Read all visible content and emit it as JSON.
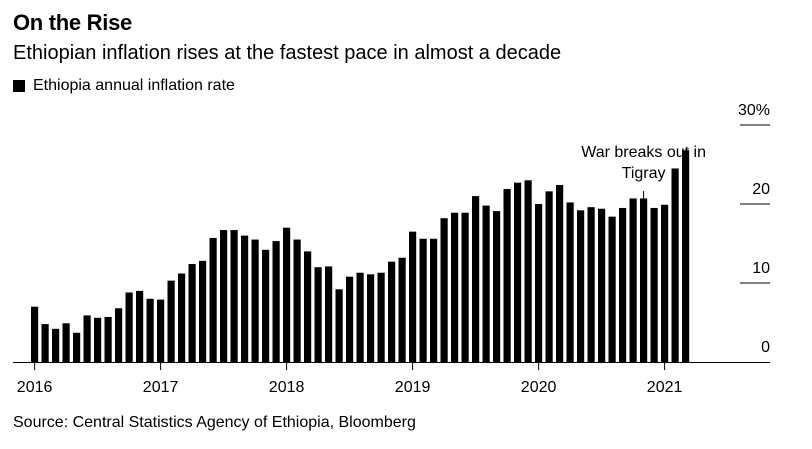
{
  "header": {
    "title": "On the Rise",
    "subtitle": "Ethiopian inflation rises at the fastest pace in almost a decade"
  },
  "footer": {
    "source": "Source: Central Statistics Agency of Ethiopia, Bloomberg"
  },
  "colors": {
    "bar": "#000000",
    "axis": "#000000",
    "grid": "#000000"
  },
  "chart_data": {
    "type": "bar",
    "legend": {
      "entries": [
        "Ethiopia annual inflation rate"
      ],
      "placement": "top-left"
    },
    "y_axis": {
      "position": "right",
      "ylim": [
        0,
        30
      ],
      "ticks": [
        0,
        10,
        20,
        30
      ],
      "tick_labels": [
        "0",
        "10",
        "20",
        "30%"
      ]
    },
    "x_axis": {
      "tick_labels": [
        "2016",
        "2017",
        "2018",
        "2019",
        "2020",
        "2021"
      ]
    },
    "annotations": [
      {
        "text": [
          "War breaks out in",
          "Tigray"
        ],
        "at_year": "2020",
        "at_month_index": 10
      }
    ],
    "series": [
      {
        "name": "Ethiopia annual inflation rate",
        "start": "2016-01",
        "values": [
          7.0,
          4.8,
          4.2,
          4.9,
          3.7,
          5.9,
          5.6,
          5.7,
          6.8,
          8.8,
          9.0,
          8.0,
          7.9,
          10.3,
          11.2,
          12.4,
          12.8,
          15.7,
          16.7,
          16.7,
          16.0,
          15.5,
          14.2,
          15.3,
          17.0,
          15.5,
          14.0,
          12.0,
          12.1,
          9.2,
          10.8,
          11.3,
          11.1,
          11.3,
          12.7,
          13.2,
          16.5,
          15.6,
          15.6,
          18.2,
          18.9,
          18.9,
          21.0,
          19.8,
          19.1,
          21.9,
          22.7,
          23.0,
          20.0,
          21.6,
          22.4,
          20.2,
          19.2,
          19.6,
          19.4,
          18.4,
          19.5,
          20.7,
          20.7,
          19.5,
          19.9,
          24.5,
          26.8
        ]
      }
    ]
  }
}
